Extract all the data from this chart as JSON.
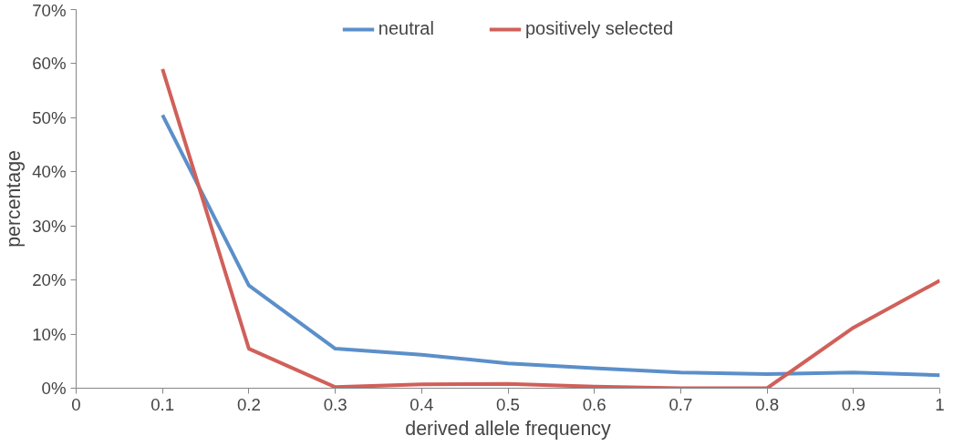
{
  "chart_data": {
    "type": "line",
    "xlabel": "derived allele frequency",
    "ylabel": "percentage",
    "x": [
      0.1,
      0.2,
      0.3,
      0.4,
      0.5,
      0.6,
      0.7,
      0.8,
      0.9,
      1.0
    ],
    "series": [
      {
        "name": "neutral",
        "color": "#5b8fc9",
        "values": [
          50.5,
          19,
          7.3,
          6.2,
          4.6,
          3.7,
          2.9,
          2.6,
          2.9,
          2.4
        ]
      },
      {
        "name": "positively selected",
        "color": "#d0605a",
        "values": [
          59,
          7.3,
          0.2,
          0.7,
          0.8,
          0.3,
          0,
          0,
          11.2,
          19.9
        ]
      }
    ],
    "xlim": [
      0,
      1
    ],
    "xticks": [
      0,
      0.1,
      0.2,
      0.3,
      0.4,
      0.5,
      0.6,
      0.7,
      0.8,
      0.9,
      1
    ],
    "ylim": [
      0,
      70
    ],
    "yticks": [
      {
        "value": 0,
        "label": "0%"
      },
      {
        "value": 10,
        "label": "10%"
      },
      {
        "value": 20,
        "label": "20%"
      },
      {
        "value": 30,
        "label": "30%"
      },
      {
        "value": 40,
        "label": "40%"
      },
      {
        "value": 50,
        "label": "50%"
      },
      {
        "value": 60,
        "label": "60%"
      },
      {
        "value": 70,
        "label": "70%"
      }
    ],
    "grid": false,
    "legend": "top",
    "marker": "none",
    "line_style": "solid"
  }
}
